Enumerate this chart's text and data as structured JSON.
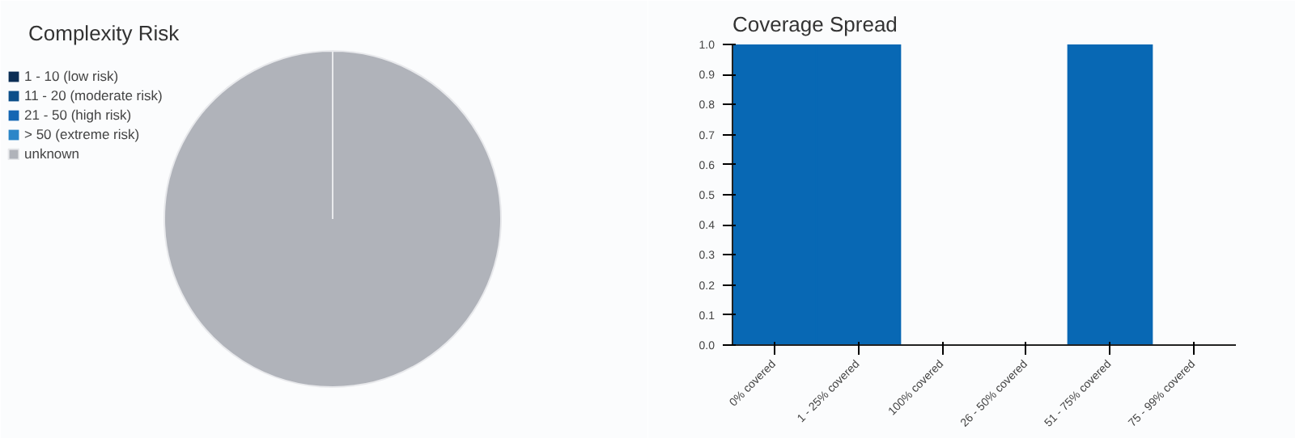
{
  "chart_data": [
    {
      "type": "pie",
      "title": "Complexity Risk",
      "categories": [
        "1 - 10 (low risk)",
        "11 - 20 (moderate risk)",
        "21 - 50 (high risk)",
        "> 50 (extreme risk)",
        "unknown"
      ],
      "values": [
        0,
        0,
        0,
        0,
        100
      ],
      "colors": [
        "#0b2e55",
        "#0d4f8a",
        "#1466b3",
        "#2c86c8",
        "#b0b3ba"
      ],
      "legend": "top left"
    },
    {
      "type": "bar",
      "title": "Coverage Spread",
      "categories": [
        "0% covered",
        "1 - 25% covered",
        "100% covered",
        "26 - 50% covered",
        "51 - 75% covered",
        "75 - 99% covered"
      ],
      "values": [
        1,
        1,
        0,
        0,
        1,
        0
      ],
      "color": "#0868b4",
      "ylim": [
        0,
        1
      ],
      "yticks": [
        {
          "value": 0,
          "label": "0.0"
        },
        0.1,
        0.2,
        0.3,
        0.4,
        0.5,
        0.6,
        0.7,
        0.8,
        0.9,
        {
          "value": 1,
          "label": "1.0"
        }
      ]
    }
  ]
}
